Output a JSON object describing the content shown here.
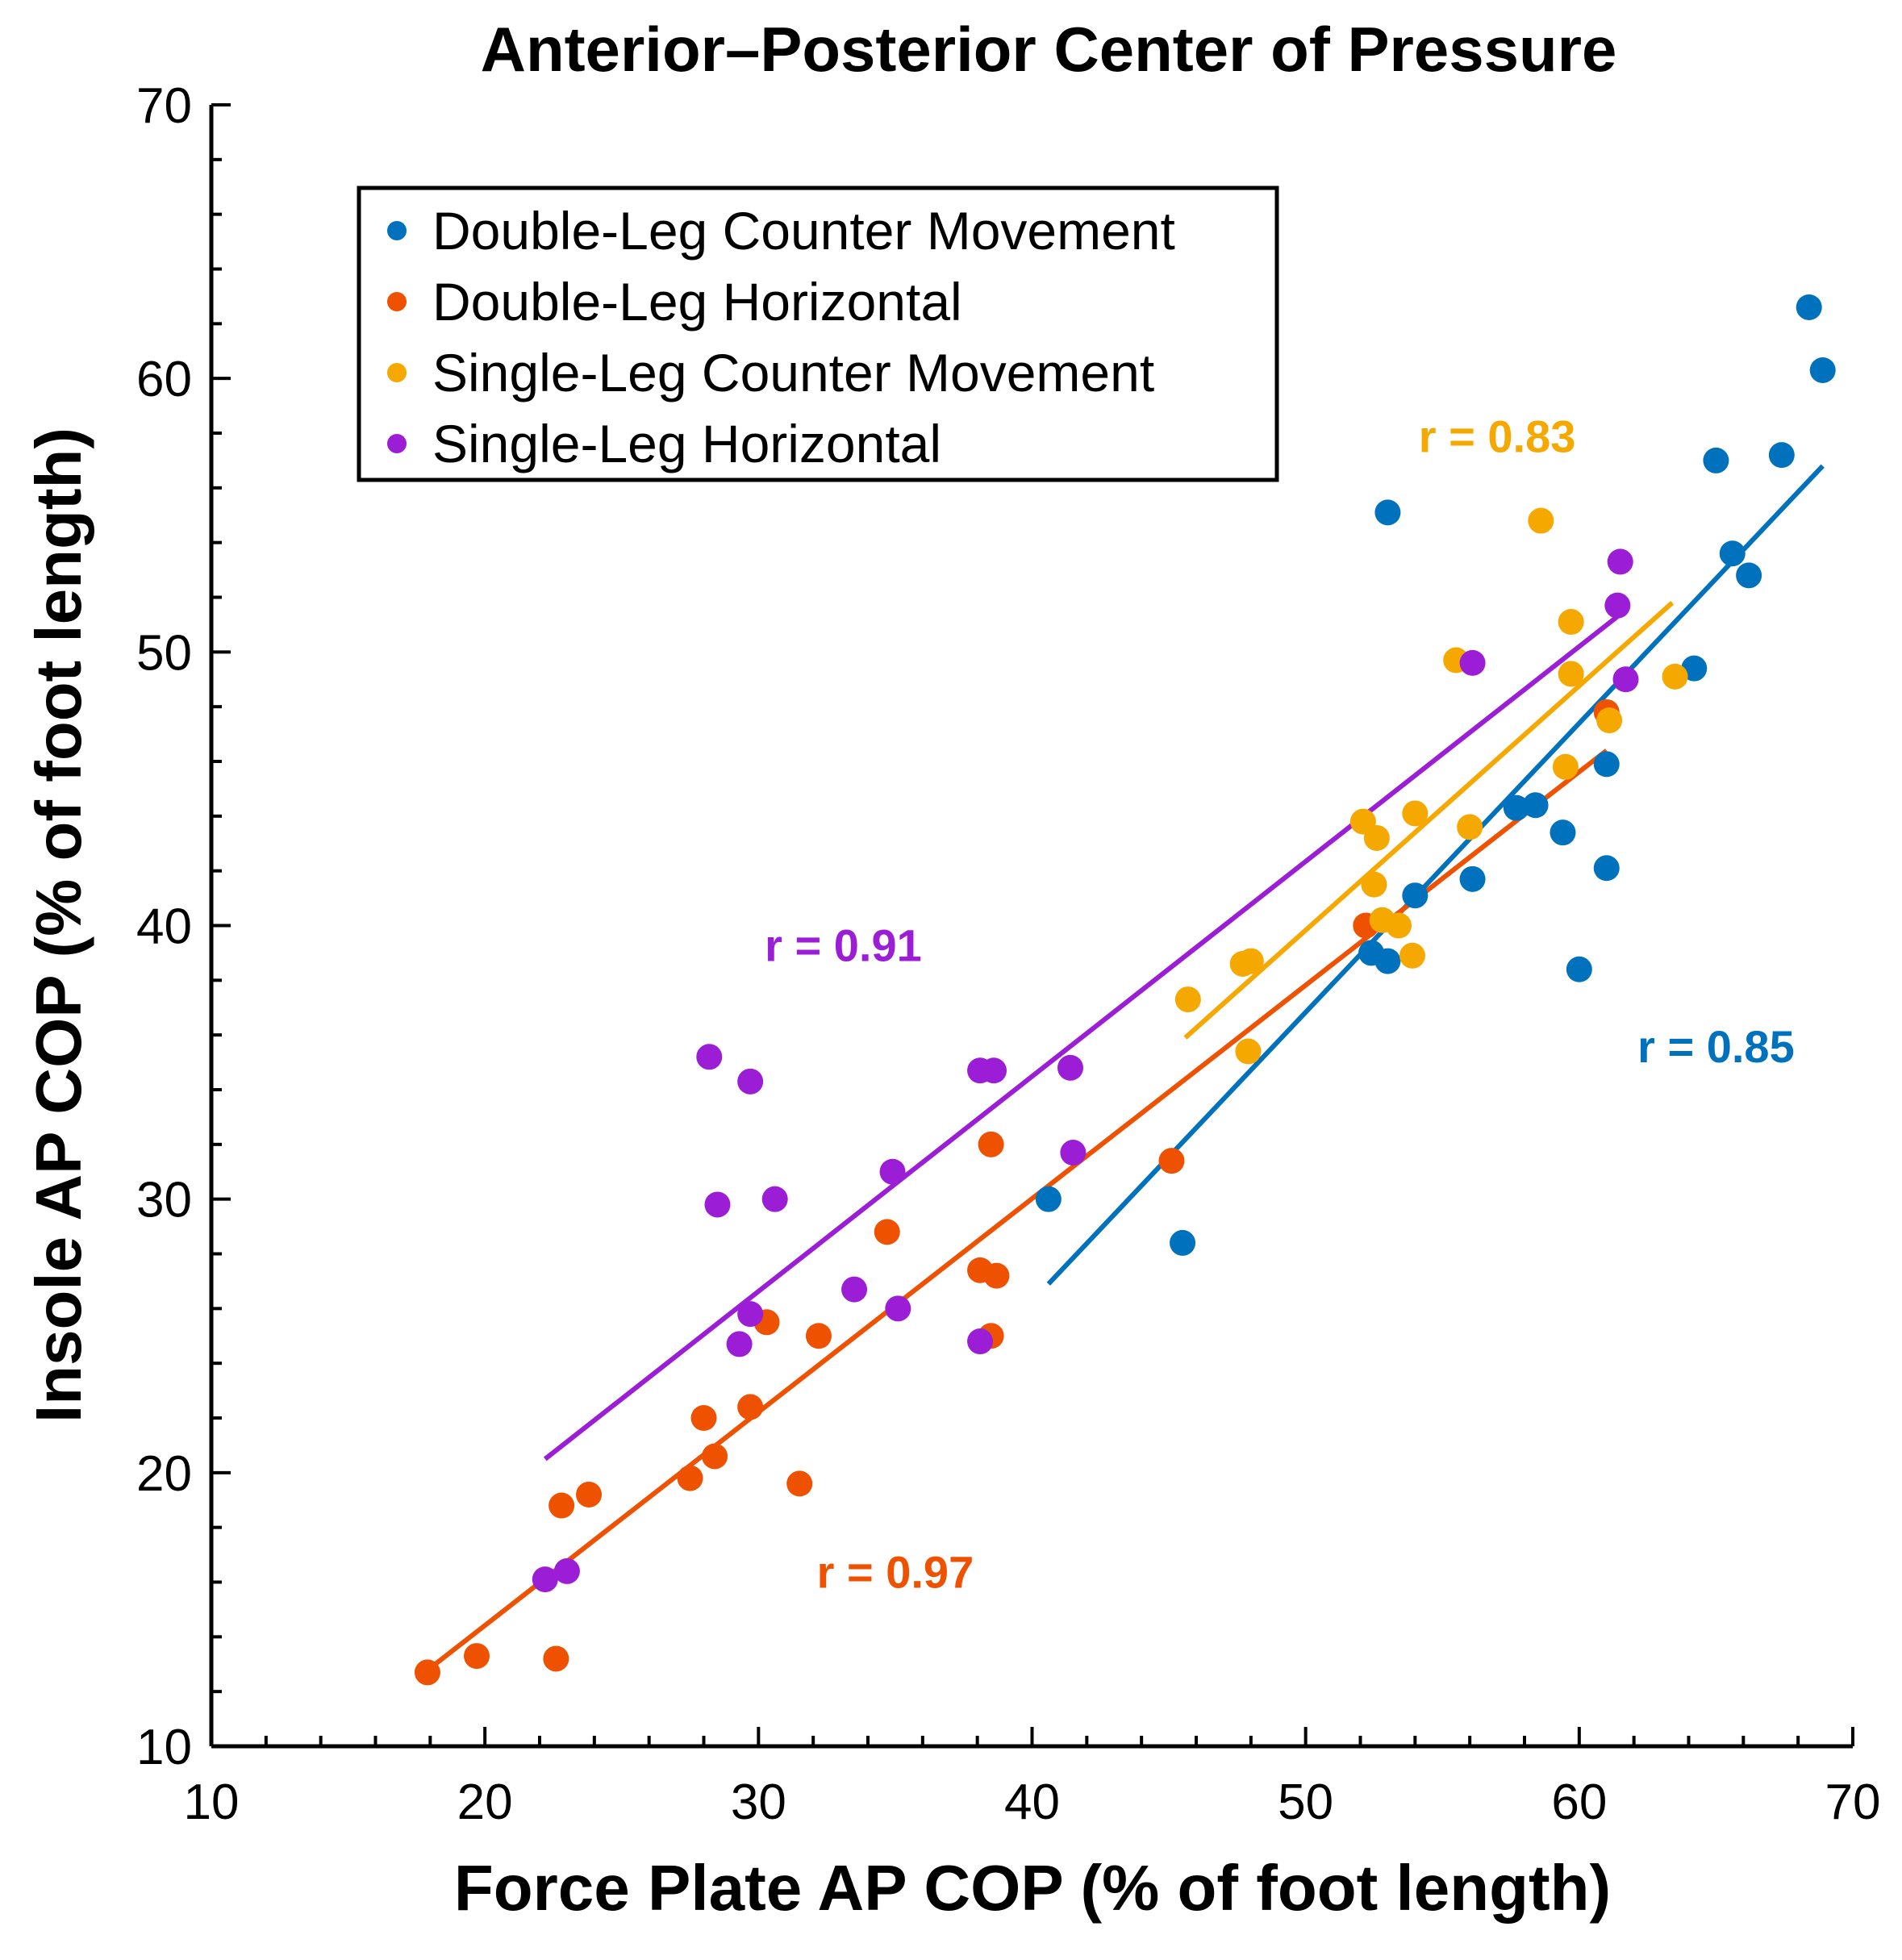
{
  "chart_data": {
    "type": "scatter",
    "title": "Anterior–Posterior Center of Pressure",
    "xlabel": "Force Plate AP COP (% of foot length)",
    "ylabel": "Insole AP COP (% of foot length)",
    "xlim": [
      10,
      70
    ],
    "ylim": [
      10,
      70
    ],
    "xticks": [
      "10",
      "20",
      "30",
      "40",
      "50",
      "60",
      "70"
    ],
    "yticks": [
      "10",
      "20",
      "30",
      "40",
      "50",
      "60",
      "70"
    ],
    "legend_position": "top-left",
    "series": [
      {
        "name": "Double-Leg Counter Movement",
        "color": "#0072BD",
        "r_label": "r = 0.85",
        "r_label_at": [
          65.0,
          35.0
        ],
        "fit": [
          [
            40.6,
            26.9
          ],
          [
            68.9,
            56.8
          ]
        ],
        "points": [
          [
            68.4,
            62.6
          ],
          [
            68.9,
            60.3
          ],
          [
            65.0,
            57.0
          ],
          [
            67.4,
            57.2
          ],
          [
            53.0,
            55.1
          ],
          [
            65.6,
            53.6
          ],
          [
            66.2,
            52.8
          ],
          [
            64.2,
            49.4
          ],
          [
            61.0,
            45.9
          ],
          [
            58.4,
            44.4
          ],
          [
            57.7,
            44.3
          ],
          [
            59.4,
            43.4
          ],
          [
            56.1,
            41.7
          ],
          [
            61.0,
            42.1
          ],
          [
            54.0,
            41.1
          ],
          [
            52.4,
            39.0
          ],
          [
            53.0,
            38.7
          ],
          [
            60.0,
            38.4
          ],
          [
            40.6,
            30.0
          ],
          [
            45.5,
            28.4
          ]
        ]
      },
      {
        "name": "Double-Leg Horizontal",
        "color": "#EE5200",
        "r_label": "r = 0.97",
        "r_label_at": [
          35.0,
          15.8
        ],
        "fit": [
          [
            17.8,
            12.7
          ],
          [
            61.0,
            46.4
          ]
        ],
        "points": [
          [
            17.9,
            12.7
          ],
          [
            19.7,
            13.3
          ],
          [
            22.6,
            13.2
          ],
          [
            22.8,
            18.8
          ],
          [
            23.8,
            19.2
          ],
          [
            27.5,
            19.8
          ],
          [
            31.5,
            19.6
          ],
          [
            28.0,
            22.0
          ],
          [
            28.4,
            20.6
          ],
          [
            29.7,
            22.4
          ],
          [
            30.3,
            25.5
          ],
          [
            32.2,
            25.0
          ],
          [
            34.7,
            28.8
          ],
          [
            38.1,
            27.4
          ],
          [
            38.7,
            27.2
          ],
          [
            38.5,
            25.0
          ],
          [
            38.5,
            32.0
          ],
          [
            45.1,
            31.4
          ],
          [
            52.2,
            40.0
          ],
          [
            61.0,
            47.8
          ]
        ]
      },
      {
        "name": "Single-Leg Counter Movement",
        "color": "#F5A800",
        "r_label": "r = 0.83",
        "r_label_at": [
          57.0,
          57.3
        ],
        "fit": [
          [
            45.6,
            35.9
          ],
          [
            63.4,
            51.8
          ]
        ],
        "points": [
          [
            58.6,
            54.8
          ],
          [
            55.5,
            49.7
          ],
          [
            59.7,
            51.1
          ],
          [
            59.7,
            49.2
          ],
          [
            63.5,
            49.1
          ],
          [
            61.1,
            47.5
          ],
          [
            59.5,
            45.8
          ],
          [
            52.1,
            43.8
          ],
          [
            52.6,
            43.2
          ],
          [
            54.0,
            44.1
          ],
          [
            56.0,
            43.6
          ],
          [
            52.5,
            41.5
          ],
          [
            52.8,
            40.2
          ],
          [
            53.4,
            40.0
          ],
          [
            53.9,
            38.9
          ],
          [
            47.7,
            38.6
          ],
          [
            48.0,
            38.7
          ],
          [
            45.7,
            37.3
          ],
          [
            47.9,
            35.4
          ]
        ]
      },
      {
        "name": "Single-Leg Horizontal",
        "color": "#9B1ED6",
        "r_label": "r = 0.91",
        "r_label_at": [
          33.1,
          38.7
        ],
        "fit": [
          [
            22.2,
            20.5
          ],
          [
            61.4,
            51.3
          ]
        ],
        "points": [
          [
            61.5,
            53.3
          ],
          [
            61.4,
            51.7
          ],
          [
            56.1,
            49.6
          ],
          [
            61.7,
            49.0
          ],
          [
            28.2,
            35.2
          ],
          [
            29.7,
            34.3
          ],
          [
            38.1,
            34.7
          ],
          [
            38.6,
            34.7
          ],
          [
            41.4,
            34.8
          ],
          [
            41.5,
            31.7
          ],
          [
            34.9,
            31.0
          ],
          [
            28.5,
            29.8
          ],
          [
            30.6,
            30.0
          ],
          [
            33.5,
            26.7
          ],
          [
            35.1,
            26.0
          ],
          [
            29.7,
            25.8
          ],
          [
            29.3,
            24.7
          ],
          [
            38.1,
            24.8
          ],
          [
            22.2,
            16.1
          ],
          [
            23.0,
            16.4
          ]
        ]
      }
    ]
  }
}
